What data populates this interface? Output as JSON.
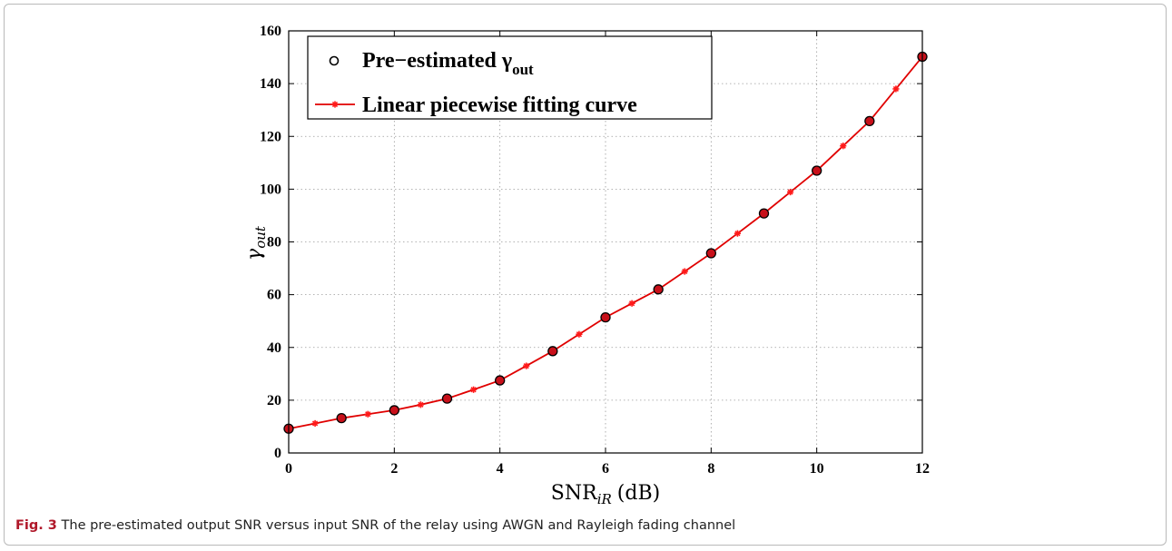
{
  "chart_data": {
    "type": "line",
    "xlabel": "SNR",
    "xlabel_sub": "iR",
    "xlabel_unit": "(dB)",
    "ylabel": "γ",
    "ylabel_sub": "out",
    "xlim": [
      0,
      12
    ],
    "ylim": [
      0,
      160
    ],
    "xticks": [
      "0",
      "2",
      "4",
      "6",
      "8",
      "10",
      "12"
    ],
    "yticks": [
      "0",
      "20",
      "40",
      "60",
      "80",
      "100",
      "120",
      "140",
      "160"
    ],
    "grid": true,
    "legend_position": "top-left",
    "series": [
      {
        "name": "Pre−estimated γ",
        "name_sub": "out",
        "marker": "circle",
        "color": "#8b0000",
        "x": [
          0,
          1,
          2,
          3,
          4,
          5,
          6,
          7,
          8,
          9,
          10,
          11,
          12
        ],
        "y": [
          9.2,
          13.2,
          16.2,
          20.6,
          27.5,
          38.6,
          51.4,
          62,
          75.7,
          90.8,
          107,
          125.8,
          150.2
        ]
      },
      {
        "name": "Linear piecewise fitting curve",
        "marker": "asterisk",
        "color": "#e00000",
        "x": [
          0,
          0.5,
          1,
          1.5,
          2,
          2.5,
          3,
          3.5,
          4,
          4.5,
          5,
          5.5,
          6,
          6.5,
          7,
          7.5,
          8,
          8.5,
          9,
          9.5,
          10,
          10.5,
          11,
          11.5,
          12
        ],
        "y": [
          9.2,
          11.2,
          13.2,
          14.7,
          16.2,
          18.3,
          20.6,
          24,
          27.5,
          33,
          38.6,
          45,
          51.4,
          56.7,
          62,
          68.8,
          75.7,
          83.2,
          90.8,
          98.9,
          107,
          116.4,
          125.8,
          138,
          150.2
        ]
      }
    ]
  },
  "caption": {
    "label": "Fig. 3",
    "text": " The pre-estimated output SNR versus input SNR of the relay using AWGN and Rayleigh fading channel"
  }
}
